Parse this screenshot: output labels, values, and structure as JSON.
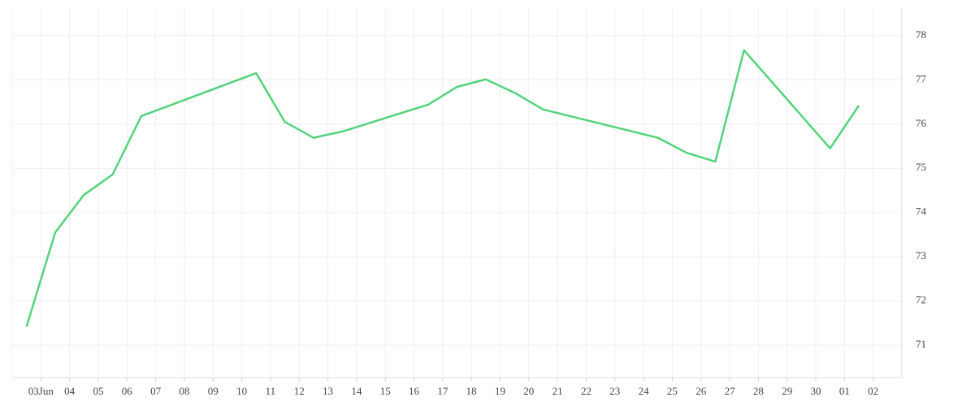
{
  "chart_data": {
    "type": "line",
    "x": [
      0.5,
      1.5,
      2.5,
      3.5,
      4.5,
      8.5,
      9.5,
      10.5,
      11.5,
      14.5,
      15.5,
      16.5,
      17.5,
      18.5,
      22.5,
      23.5,
      24.5,
      25.5,
      28.5,
      29.5
    ],
    "series": [
      {
        "color": "#53d37b",
        "values": [
          71.42,
          73.55,
          74.4,
          74.86,
          76.18,
          77.15,
          76.05,
          75.69,
          75.83,
          76.44,
          76.84,
          77.01,
          76.71,
          76.33,
          75.69,
          75.35,
          75.15,
          77.67,
          75.45,
          76.42
        ]
      }
    ],
    "xlim": [
      0,
      31
    ],
    "xticks": [
      {
        "value": 1,
        "label": "03Jun"
      },
      {
        "value": 2,
        "label": "04"
      },
      {
        "value": 3,
        "label": "05"
      },
      {
        "value": 4,
        "label": "06"
      },
      {
        "value": 5,
        "label": "07"
      },
      {
        "value": 6,
        "label": "08"
      },
      {
        "value": 7,
        "label": "09"
      },
      {
        "value": 8,
        "label": "10"
      },
      {
        "value": 9,
        "label": "11"
      },
      {
        "value": 10,
        "label": "12"
      },
      {
        "value": 11,
        "label": "13"
      },
      {
        "value": 12,
        "label": "14"
      },
      {
        "value": 13,
        "label": "15"
      },
      {
        "value": 14,
        "label": "16"
      },
      {
        "value": 15,
        "label": "17"
      },
      {
        "value": 16,
        "label": "18"
      },
      {
        "value": 17,
        "label": "19"
      },
      {
        "value": 18,
        "label": "20"
      },
      {
        "value": 19,
        "label": "21"
      },
      {
        "value": 20,
        "label": "22"
      },
      {
        "value": 21,
        "label": "23"
      },
      {
        "value": 22,
        "label": "24"
      },
      {
        "value": 23,
        "label": "25"
      },
      {
        "value": 24,
        "label": "26"
      },
      {
        "value": 25,
        "label": "27"
      },
      {
        "value": 26,
        "label": "28"
      },
      {
        "value": 27,
        "label": "29"
      },
      {
        "value": 28,
        "label": "30"
      },
      {
        "value": 29,
        "label": "01"
      },
      {
        "value": 30,
        "label": "02"
      }
    ],
    "ylim": [
      70.27,
      78.62
    ],
    "yticks": [
      71,
      72,
      73,
      74,
      75,
      76,
      77,
      78
    ],
    "grid": true
  }
}
